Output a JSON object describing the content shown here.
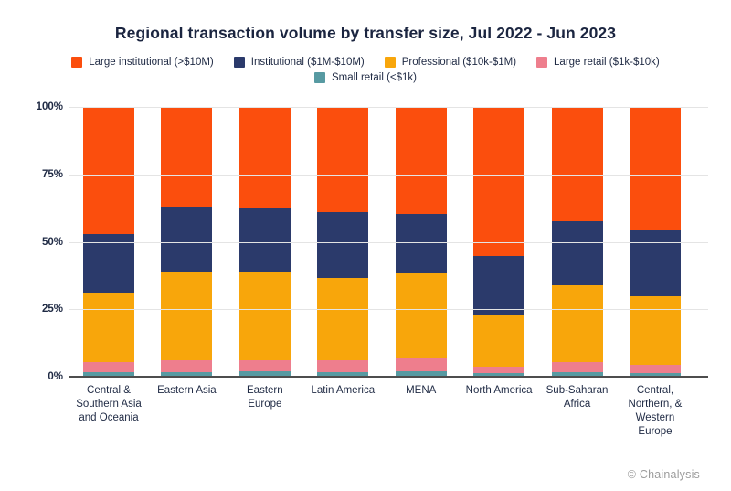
{
  "title": "Regional transaction volume by transfer size, Jul 2022 - Jun 2023",
  "footer": {
    "text": "© Chainalysis"
  },
  "legend_rows": [
    4,
    1
  ],
  "chart_data": {
    "type": "bar",
    "stacked": true,
    "title": "Regional transaction volume by transfer size, Jul 2022 - Jun 2023",
    "xlabel": "",
    "ylabel": "",
    "ylim": [
      0,
      100
    ],
    "yticks": [
      "0%",
      "25%",
      "50%",
      "75%",
      "100%"
    ],
    "grid": true,
    "legend_position": "top",
    "categories": [
      "Central &\nSouthern Asia\nand Oceania",
      "Eastern Asia",
      "Eastern\nEurope",
      "Latin America",
      "MENA",
      "North America",
      "Sub-Saharan\nAfrica",
      "Central,\nNorthern, &\nWestern\nEurope"
    ],
    "series": [
      {
        "name": "Large institutional (>$10M)",
        "color": "#fb4e0d",
        "values": [
          47.0,
          37.0,
          37.5,
          39.0,
          39.6,
          55.3,
          42.3,
          45.8
        ]
      },
      {
        "name": "Institutional ($1M-$10M)",
        "color": "#2b3a6b",
        "values": [
          21.7,
          24.5,
          23.5,
          24.3,
          22.2,
          21.5,
          23.7,
          24.5
        ]
      },
      {
        "name": "Professional ($10k-$1M)",
        "color": "#f8a60b",
        "values": [
          26.0,
          32.5,
          32.8,
          30.7,
          31.4,
          19.5,
          28.4,
          25.3
        ]
      },
      {
        "name": "Large retail ($1k-$10k)",
        "color": "#ee7e8d",
        "values": [
          3.6,
          4.2,
          4.2,
          4.2,
          4.8,
          2.4,
          3.8,
          3.0
        ]
      },
      {
        "name": "Small retail (<$1k)",
        "color": "#579aa2",
        "values": [
          1.7,
          1.8,
          2.0,
          1.8,
          2.0,
          1.3,
          1.8,
          1.4
        ]
      }
    ]
  }
}
